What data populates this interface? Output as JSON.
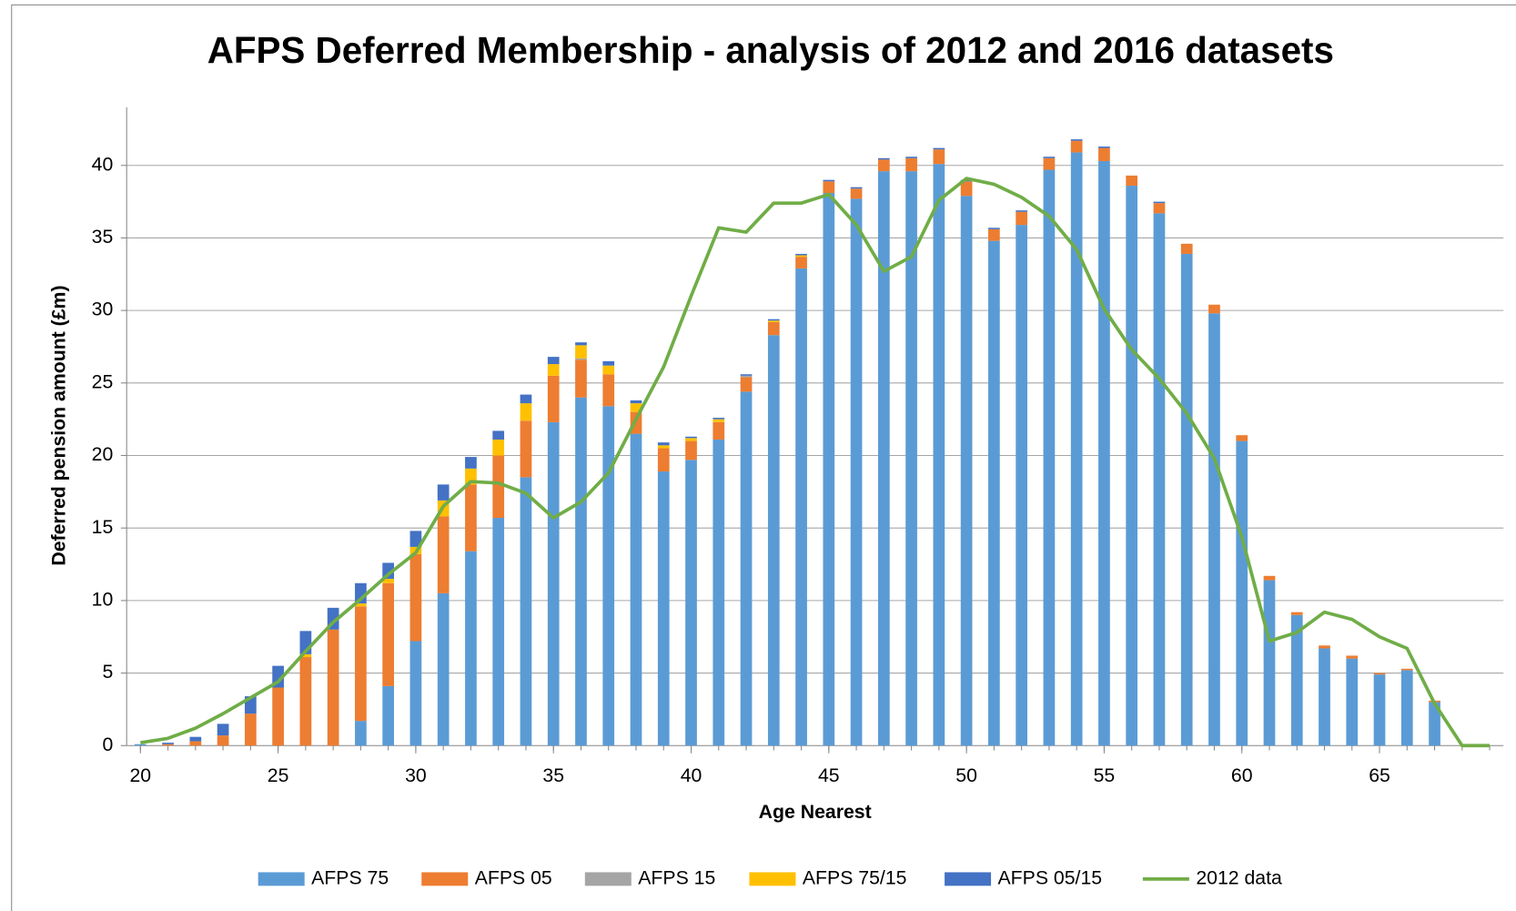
{
  "chart_data": {
    "type": "bar",
    "stacked": true,
    "title": "AFPS Deferred Membership - analysis of 2012 and 2016 datasets",
    "xlabel": "Age Nearest",
    "ylabel": "Deferred pension amount (£m)",
    "x": [
      20,
      21,
      22,
      23,
      24,
      25,
      26,
      27,
      28,
      29,
      30,
      31,
      32,
      33,
      34,
      35,
      36,
      37,
      38,
      39,
      40,
      41,
      42,
      43,
      44,
      45,
      46,
      47,
      48,
      49,
      50,
      51,
      52,
      53,
      54,
      55,
      56,
      57,
      58,
      59,
      60,
      61,
      62,
      63,
      64,
      65,
      66,
      67,
      68,
      69
    ],
    "xlim": [
      19.5,
      69.5
    ],
    "xticks": [
      20,
      25,
      30,
      35,
      40,
      45,
      50,
      55,
      60,
      65
    ],
    "ylim": [
      0,
      44
    ],
    "yticks": [
      0,
      5,
      10,
      15,
      20,
      25,
      30,
      35,
      40
    ],
    "grid": true,
    "legend": "bottom",
    "series": [
      {
        "name": "AFPS 75",
        "type": "bar",
        "color": "#5b9bd5",
        "values": [
          0.1,
          0,
          0,
          0,
          0,
          0,
          0,
          0,
          1.7,
          4.1,
          7.2,
          10.5,
          13.4,
          15.7,
          18.5,
          22.3,
          24.0,
          23.4,
          21.5,
          18.9,
          19.7,
          21.1,
          24.4,
          28.3,
          32.9,
          38.1,
          37.7,
          39.6,
          39.6,
          40.1,
          37.9,
          34.8,
          35.9,
          39.7,
          40.9,
          40.3,
          38.6,
          36.7,
          33.9,
          29.8,
          21.0,
          11.4,
          9.0,
          6.7,
          6.0,
          4.9,
          5.2,
          3.0,
          0,
          0
        ]
      },
      {
        "name": "AFPS 05",
        "type": "bar",
        "color": "#ed7d31",
        "values": [
          0,
          0.1,
          0.3,
          0.7,
          2.2,
          4.0,
          6.1,
          8.0,
          7.9,
          7.1,
          6.0,
          5.3,
          4.6,
          4.3,
          3.9,
          3.2,
          2.6,
          2.2,
          1.5,
          1.6,
          1.3,
          1.2,
          1.0,
          0.9,
          0.8,
          0.8,
          0.7,
          0.8,
          0.9,
          1.0,
          1.0,
          0.8,
          0.9,
          0.8,
          0.8,
          0.9,
          0.7,
          0.7,
          0.7,
          0.6,
          0.4,
          0.3,
          0.2,
          0.2,
          0.2,
          0.1,
          0.1,
          0.1,
          0,
          0
        ]
      },
      {
        "name": "AFPS 15",
        "type": "bar",
        "color": "#a5a5a5",
        "values": [
          0,
          0,
          0,
          0,
          0,
          0,
          0,
          0,
          0,
          0,
          0,
          0,
          0,
          0,
          0,
          0,
          0.1,
          0,
          0,
          0,
          0,
          0,
          0.1,
          0,
          0,
          0,
          0,
          0,
          0,
          0,
          0,
          0,
          0,
          0,
          0,
          0,
          0,
          0,
          0,
          0,
          0,
          0,
          0,
          0,
          0,
          0,
          0,
          0,
          0,
          0
        ]
      },
      {
        "name": "AFPS 75/15",
        "type": "bar",
        "color": "#ffc000",
        "values": [
          0,
          0,
          0,
          0,
          0,
          0,
          0.2,
          0,
          0.2,
          0.3,
          0.5,
          1.1,
          1.1,
          1.1,
          1.2,
          0.8,
          0.9,
          0.6,
          0.6,
          0.2,
          0.2,
          0.2,
          0,
          0.1,
          0.1,
          0,
          0,
          0,
          0,
          0,
          0,
          0,
          0,
          0,
          0,
          0,
          0,
          0,
          0,
          0,
          0,
          0,
          0,
          0,
          0,
          0,
          0,
          0,
          0,
          0
        ]
      },
      {
        "name": "AFPS 05/15",
        "type": "bar",
        "color": "#4472c4",
        "values": [
          0,
          0.1,
          0.3,
          0.8,
          1.2,
          1.5,
          1.6,
          1.5,
          1.4,
          1.1,
          1.1,
          1.1,
          0.8,
          0.6,
          0.6,
          0.5,
          0.2,
          0.3,
          0.2,
          0.2,
          0.1,
          0.1,
          0.1,
          0.1,
          0.1,
          0.1,
          0.1,
          0.1,
          0.1,
          0.1,
          0.1,
          0.1,
          0.1,
          0.1,
          0.1,
          0.1,
          0,
          0.1,
          0,
          0,
          0,
          0,
          0,
          0,
          0,
          0,
          0,
          0,
          0,
          0
        ]
      },
      {
        "name": "2012 data",
        "type": "line",
        "color": "#70ad47",
        "values": [
          0.2,
          0.5,
          1.2,
          2.2,
          3.3,
          4.4,
          6.5,
          8.5,
          10.1,
          11.8,
          13.3,
          16.5,
          18.2,
          18.1,
          17.4,
          15.7,
          16.8,
          18.8,
          22.5,
          26.1,
          31.0,
          35.7,
          35.4,
          37.4,
          37.4,
          38.0,
          35.9,
          32.7,
          33.7,
          37.6,
          39.1,
          38.7,
          37.8,
          36.5,
          34.2,
          30.1,
          27.3,
          25.3,
          22.9,
          19.8,
          14.4,
          7.2,
          7.8,
          9.2,
          8.7,
          7.5,
          6.7,
          2.9,
          0,
          0
        ]
      }
    ]
  }
}
